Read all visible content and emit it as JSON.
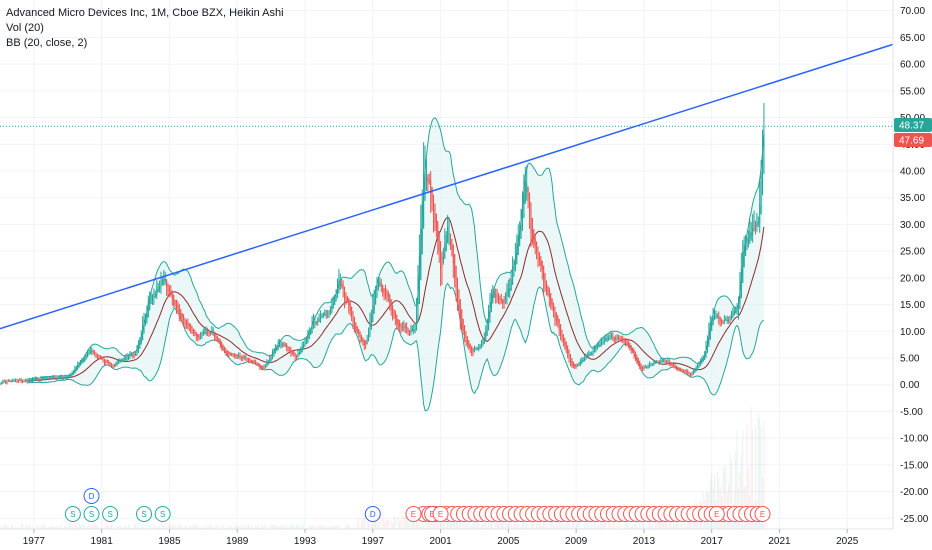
{
  "legend": {
    "title": "Advanced Micro Devices Inc, 1M, Cboe BZX, Heikin Ashi",
    "vol": "Vol (20)",
    "bb": "BB (20, close, 2)"
  },
  "price_tags": {
    "last": "48.37",
    "close": "47.69"
  },
  "colors": {
    "up": "#26a69a",
    "down": "#ef5350",
    "trendline": "#2962ff",
    "bb_line": "#26a69a",
    "bb_fill": "#e0f2f1",
    "basis": "#8d2c2c",
    "last_tag": "#26a69a",
    "close_tag": "#ef5350",
    "grid": "#f0f3fa"
  },
  "events": {
    "split_label": "S",
    "dividend_label": "D",
    "earnings_label": "E"
  },
  "chart_data": {
    "type": "candlestick",
    "title": "Advanced Micro Devices Inc, 1M, Cboe BZX, Heikin Ashi",
    "xlabel": "",
    "ylabel": "",
    "x_ticks": [
      "1977",
      "1981",
      "1985",
      "1989",
      "1993",
      "1997",
      "2001",
      "2005",
      "2009",
      "2013",
      "2017",
      "2021",
      "2025"
    ],
    "y_ticks": [
      "70.00",
      "65.00",
      "60.00",
      "55.00",
      "50.00",
      "45.00",
      "40.00",
      "35.00",
      "30.00",
      "25.00",
      "20.00",
      "15.00",
      "10.00",
      "5.00",
      "0.00",
      "-5.00",
      "-10.00",
      "-15.00",
      "-20.00",
      "-25.00"
    ],
    "ylim": [
      -27,
      72
    ],
    "xlim": [
      1975.0,
      2027.7
    ],
    "last_price": 48.37,
    "close_price": 47.69,
    "price_anchors": [
      [
        1975.0,
        0.5
      ],
      [
        1979.0,
        1.5
      ],
      [
        1980.3,
        6.5
      ],
      [
        1981.5,
        3.5
      ],
      [
        1983.0,
        6
      ],
      [
        1983.8,
        16
      ],
      [
        1984.6,
        20
      ],
      [
        1985.5,
        14
      ],
      [
        1986.5,
        9
      ],
      [
        1987.5,
        10
      ],
      [
        1988.3,
        6
      ],
      [
        1989.5,
        5
      ],
      [
        1990.5,
        3
      ],
      [
        1991.5,
        8
      ],
      [
        1992.5,
        5
      ],
      [
        1993.5,
        12
      ],
      [
        1994.5,
        14
      ],
      [
        1995.0,
        19
      ],
      [
        1995.8,
        12
      ],
      [
        1996.5,
        7
      ],
      [
        1997.3,
        20
      ],
      [
        1998.5,
        11
      ],
      [
        1999.5,
        10
      ],
      [
        2000.0,
        41
      ],
      [
        2000.5,
        33
      ],
      [
        2001.0,
        20
      ],
      [
        2001.4,
        30
      ],
      [
        2002.2,
        10
      ],
      [
        2002.8,
        6
      ],
      [
        2003.5,
        8
      ],
      [
        2004.0,
        17
      ],
      [
        2004.7,
        15
      ],
      [
        2005.3,
        22
      ],
      [
        2006.0,
        38
      ],
      [
        2006.5,
        25
      ],
      [
        2007.5,
        15
      ],
      [
        2008.2,
        8
      ],
      [
        2008.8,
        3
      ],
      [
        2009.5,
        5
      ],
      [
        2010.5,
        8
      ],
      [
        2011.2,
        9
      ],
      [
        2012.0,
        8
      ],
      [
        2012.8,
        3
      ],
      [
        2013.5,
        4
      ],
      [
        2014.3,
        4.5
      ],
      [
        2015.0,
        3
      ],
      [
        2015.8,
        2
      ],
      [
        2016.5,
        5
      ],
      [
        2017.0,
        13
      ],
      [
        2017.8,
        12
      ],
      [
        2018.5,
        14
      ],
      [
        2018.8,
        25
      ],
      [
        2019.3,
        28
      ],
      [
        2019.8,
        33
      ],
      [
        2020.1,
        50
      ]
    ],
    "trendline": {
      "start": [
        1975.0,
        10.5
      ],
      "end": [
        2027.7,
        63.7
      ]
    },
    "bollinger": {
      "length": 20,
      "source": "close",
      "mult": 2
    },
    "volume_length": 20,
    "split_events_x": [
      1979.3,
      1980.4,
      1981.5,
      1983.5,
      1984.6
    ],
    "dividend_events_x": [
      1980.4,
      1997.0
    ],
    "earnings_events": {
      "first_x": 2000.0,
      "last_x": 2020.0,
      "spacing": 0.34,
      "labeled_x": [
        1999.4,
        2000.5,
        2001.0,
        2017.3,
        2020.0
      ]
    }
  }
}
